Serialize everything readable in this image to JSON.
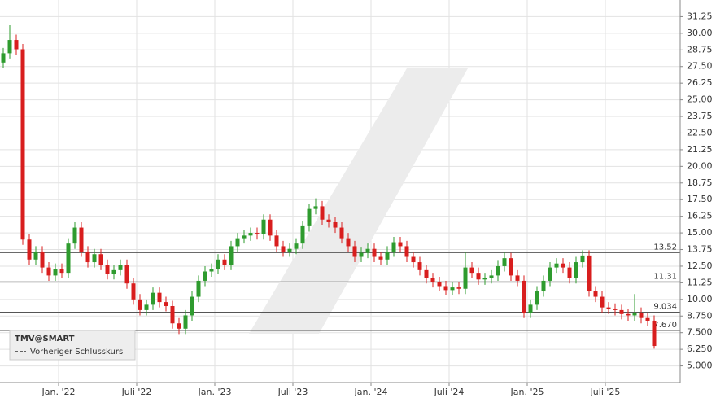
{
  "chart_data": {
    "type": "candlestick",
    "open": [
      27.8,
      28.5,
      29.5,
      28.8,
      14.5,
      13.0,
      13.6,
      12.4,
      11.8,
      12.3,
      12.0,
      14.2,
      15.4,
      13.6,
      12.8,
      13.4,
      12.6,
      11.9,
      12.2,
      12.6,
      11.2,
      10.0,
      9.2,
      9.6,
      10.5,
      9.8,
      9.5,
      8.2,
      7.8,
      8.8,
      10.2,
      11.4,
      12.1,
      12.3,
      13.0,
      12.6,
      14.0,
      14.6,
      14.8,
      15.0,
      14.9,
      16.0,
      14.8,
      14.0,
      13.6,
      13.8,
      14.2,
      15.5,
      16.8,
      17.0,
      16.0,
      15.8,
      15.4,
      14.6,
      14.0,
      13.2,
      13.5,
      13.8,
      13.2,
      13.0,
      13.6,
      14.3,
      14.0,
      13.2,
      12.8,
      12.2,
      11.6,
      11.3,
      11.0,
      10.7,
      10.9,
      10.8,
      12.4,
      12.0,
      11.5,
      11.6,
      11.8,
      12.5,
      13.1,
      11.8,
      11.4,
      9.0,
      9.6,
      10.6,
      11.4,
      12.4,
      12.7,
      12.4,
      11.6,
      12.8,
      13.3,
      10.6,
      10.2,
      9.4,
      9.3,
      9.2,
      8.9,
      8.8,
      9.0,
      8.6,
      8.4
    ],
    "high": [
      28.9,
      30.6,
      29.9,
      29.2,
      14.9,
      14.0,
      14.0,
      12.8,
      12.7,
      12.7,
      14.6,
      15.8,
      15.8,
      14.0,
      13.8,
      13.8,
      13.0,
      12.6,
      13.0,
      13.0,
      11.6,
      10.4,
      10.0,
      10.9,
      10.9,
      10.2,
      9.9,
      8.6,
      9.2,
      10.6,
      11.8,
      12.5,
      12.7,
      13.4,
      13.4,
      14.4,
      15.0,
      15.2,
      15.4,
      15.4,
      16.4,
      16.4,
      15.2,
      14.4,
      14.2,
      14.6,
      15.9,
      17.2,
      17.6,
      17.4,
      16.4,
      16.2,
      15.8,
      15.0,
      14.4,
      13.9,
      14.2,
      14.2,
      13.6,
      14.0,
      14.7,
      14.7,
      14.4,
      13.6,
      13.2,
      12.6,
      12.0,
      11.7,
      11.4,
      11.3,
      11.3,
      13.6,
      12.8,
      12.4,
      12.0,
      12.2,
      12.9,
      13.6,
      13.5,
      12.2,
      11.8,
      10.0,
      11.0,
      11.8,
      12.8,
      13.1,
      13.1,
      12.8,
      13.2,
      13.7,
      13.7,
      11.0,
      10.6,
      9.8,
      9.7,
      9.6,
      9.3,
      10.4,
      9.4,
      9.0,
      8.8
    ],
    "low": [
      27.4,
      28.1,
      28.4,
      14.1,
      12.6,
      12.6,
      12.0,
      11.4,
      11.4,
      11.6,
      11.6,
      13.8,
      13.2,
      12.4,
      12.4,
      12.2,
      11.5,
      11.5,
      11.8,
      10.8,
      9.6,
      8.8,
      8.8,
      9.2,
      9.4,
      9.1,
      7.8,
      7.4,
      7.4,
      8.4,
      9.8,
      11.0,
      11.7,
      11.9,
      12.2,
      12.2,
      13.6,
      14.2,
      14.4,
      14.5,
      14.5,
      14.4,
      13.6,
      13.2,
      13.2,
      13.4,
      13.8,
      15.1,
      16.4,
      15.6,
      15.4,
      15.0,
      14.2,
      13.6,
      12.8,
      12.8,
      13.1,
      12.8,
      12.6,
      12.6,
      13.2,
      13.6,
      12.8,
      12.4,
      11.8,
      11.2,
      10.9,
      10.6,
      10.3,
      10.3,
      10.4,
      10.4,
      11.6,
      11.1,
      11.1,
      11.2,
      11.4,
      12.1,
      11.4,
      11.0,
      8.6,
      8.6,
      9.2,
      10.2,
      11.0,
      12.0,
      12.0,
      11.2,
      11.2,
      12.4,
      10.2,
      9.8,
      9.0,
      8.9,
      8.8,
      8.5,
      8.4,
      8.4,
      8.2,
      8.0,
      6.3
    ],
    "close": [
      28.5,
      29.5,
      28.8,
      14.5,
      13.0,
      13.6,
      12.4,
      11.8,
      12.3,
      12.0,
      14.2,
      15.4,
      13.6,
      12.8,
      13.4,
      12.6,
      11.9,
      12.2,
      12.6,
      11.2,
      10.0,
      9.2,
      9.6,
      10.5,
      9.8,
      9.5,
      8.2,
      7.8,
      8.8,
      10.2,
      11.4,
      12.1,
      12.3,
      13.0,
      12.6,
      14.0,
      14.6,
      14.8,
      15.0,
      14.9,
      16.0,
      14.8,
      14.0,
      13.6,
      13.8,
      14.2,
      15.5,
      16.8,
      17.0,
      16.0,
      15.8,
      15.4,
      14.6,
      14.0,
      13.2,
      13.5,
      13.8,
      13.2,
      13.0,
      13.6,
      14.3,
      14.0,
      13.2,
      12.8,
      12.2,
      11.6,
      11.3,
      11.0,
      10.7,
      10.9,
      10.8,
      12.4,
      12.0,
      11.5,
      11.6,
      11.8,
      12.5,
      13.1,
      11.8,
      11.4,
      9.0,
      9.6,
      10.6,
      11.4,
      12.4,
      12.7,
      12.4,
      11.6,
      12.8,
      13.3,
      10.6,
      10.2,
      9.4,
      9.3,
      9.2,
      8.9,
      8.8,
      9.0,
      8.6,
      8.4,
      6.5
    ],
    "up_color": "#2e9b2e",
    "down_color": "#d81e1e",
    "xlim": [
      0,
      104.5
    ],
    "xticks": [
      {
        "value": 9,
        "label": "Jan. '22"
      },
      {
        "value": 21,
        "label": "Juli '22"
      },
      {
        "value": 33,
        "label": "Jan. '23"
      },
      {
        "value": 45,
        "label": "Juli '23"
      },
      {
        "value": 57,
        "label": "Jan. '24"
      },
      {
        "value": 69,
        "label": "Juli '24"
      },
      {
        "value": 81,
        "label": "Jan. '25"
      },
      {
        "value": 93,
        "label": "Juli '25"
      }
    ],
    "ylim": [
      3.75,
      32.5
    ],
    "yticks": [
      {
        "value": 5,
        "label": "5.000"
      },
      {
        "value": 6.25,
        "label": "6.250"
      },
      {
        "value": 7.5,
        "label": "7.500"
      },
      {
        "value": 8.75,
        "label": "8.750"
      },
      {
        "value": 10,
        "label": "10.00"
      },
      11.25,
      {
        "value": 12.5,
        "label": "12.50"
      },
      13.75,
      {
        "value": 15,
        "label": "15.00"
      },
      16.25,
      {
        "value": 17.5,
        "label": "17.50"
      },
      18.75,
      {
        "value": 20,
        "label": "20.00"
      },
      21.25,
      {
        "value": 22.5,
        "label": "22.50"
      },
      23.75,
      {
        "value": 25,
        "label": "25.00"
      },
      26.25,
      {
        "value": 27.5,
        "label": "27.50"
      },
      28.75,
      {
        "value": 30,
        "label": "30.00"
      },
      31.25
    ],
    "grid": true,
    "reference_lines": [
      13.52,
      11.31,
      9.034,
      {
        "value": 7.67,
        "label": "7.670"
      }
    ],
    "legend": {
      "title": "TMV@SMART",
      "entries": [
        "Vorheriger Schlusskurs"
      ]
    }
  }
}
